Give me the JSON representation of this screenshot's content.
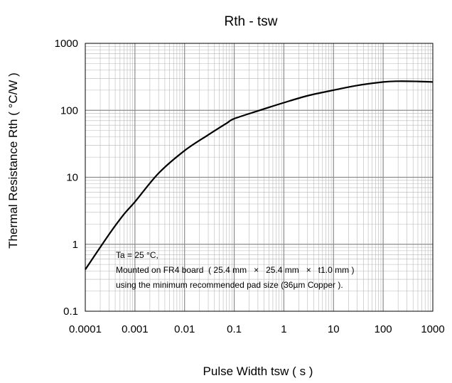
{
  "chart_data": {
    "type": "line",
    "title": "Rth - tsw",
    "xlabel": "Pulse Width tsw ( s )",
    "ylabel": "Thermal Resistance Rth ( °C/W )",
    "x_scale": "log",
    "y_scale": "log",
    "xlim": [
      0.0001,
      1000
    ],
    "ylim": [
      0.1,
      1000
    ],
    "grid": true,
    "x_tick_labels": [
      "0.0001",
      "0.001",
      "0.01",
      "0.1",
      "1",
      "10",
      "100",
      "1000"
    ],
    "y_tick_labels": [
      "0.1",
      "1",
      "10",
      "100",
      "1000"
    ],
    "annotations": [
      "Ta = 25 °C,",
      "Mounted on FR4 board  ( 25.4 mm   ×   25.4 mm   ×   t1.0 mm )",
      "using the minimum recommended pad size (36µm Copper )."
    ],
    "series": [
      {
        "color": "#000000",
        "x": [
          0.0001,
          0.0003,
          0.0006,
          0.001,
          0.003,
          0.01,
          0.03,
          0.07,
          0.1,
          0.3,
          1,
          3,
          10,
          30,
          100,
          200,
          500,
          1000
        ],
        "y": [
          0.42,
          1.4,
          2.8,
          4.3,
          11.5,
          25,
          43,
          64,
          75,
          98,
          130,
          165,
          200,
          235,
          265,
          272,
          270,
          265
        ]
      }
    ]
  }
}
